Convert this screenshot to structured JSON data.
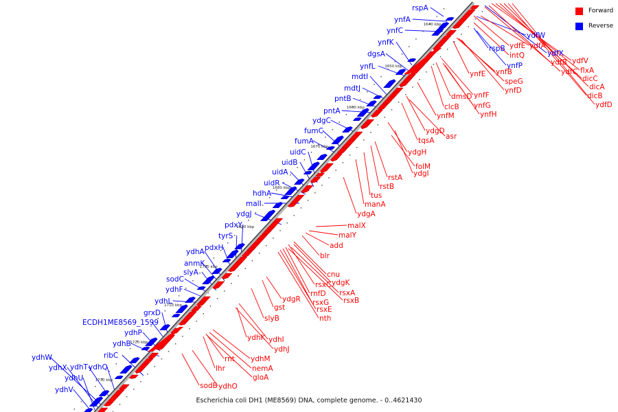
{
  "caption": "Escherichia coli DH1 (ME8569) DNA, complete genome. - 0..4621430",
  "legend": {
    "forward_label": "Forward",
    "forward_color": "#ff0000",
    "reverse_label": "Reverse",
    "reverse_color": "#0000ff"
  },
  "axis_ticks": [
    "1640 kbp",
    "1650 kbp",
    "1660 kbp",
    "1670 kbp",
    "1680 kbp",
    "1690 kbp",
    "1700 kbp",
    "1710 kbp",
    "1720 kbp",
    "1730 kbp"
  ],
  "reverse_genes": [
    "rspA",
    "ynfA",
    "ynfC",
    "ynfK",
    "dgsA",
    "ynfL",
    "mdtI",
    "mdtJ",
    "pntB",
    "pntA",
    "ydgC",
    "fumC",
    "fumA",
    "uidC",
    "uidB",
    "uidA",
    "uidR",
    "hdhA",
    "malI",
    "ydgJ",
    "pdxY",
    "tyrS",
    "pdxH",
    "ydhA",
    "anmK",
    "slyA",
    "sodC",
    "ydhF",
    "ydhL",
    "grxD",
    "ECDH1ME8569_1599",
    "ydhP",
    "ydhB",
    "ribC",
    "ydhQ",
    "ydhT",
    "ydhW",
    "ydhX",
    "ydhU",
    "ydhV"
  ],
  "reverse_genes_right": [
    "ydfW",
    "rspB",
    "ynfP",
    "ydfX"
  ],
  "forward_genes": [
    "ydfE",
    "ydfA",
    "intQ",
    "ydfB",
    "ydfV",
    "ydfC",
    "flxA",
    "dicC",
    "dicA",
    "dicB",
    "ydfD",
    "ynfB",
    "ynfE",
    "speG",
    "ynfD",
    "ynfF",
    "dmsD",
    "ynfG",
    "clcB",
    "ynfH",
    "ynfM",
    "ydgD",
    "tqsA",
    "asr",
    "ydgH",
    "folM",
    "ydgI",
    "rstA",
    "rstB",
    "tus",
    "manA",
    "ydgA",
    "malX",
    "malY",
    "add",
    "blr",
    "cnu",
    "ydgK",
    "rsxC",
    "rsxA",
    "rnfD",
    "rsxB",
    "rsxG",
    "ydgR",
    "rsxE",
    "gst",
    "nth",
    "slyB",
    "ydhK",
    "ydhI",
    "ydhJ",
    "ydhM",
    "rnt",
    "nemA",
    "lhr",
    "gloA",
    "sodB",
    "ydhO"
  ]
}
